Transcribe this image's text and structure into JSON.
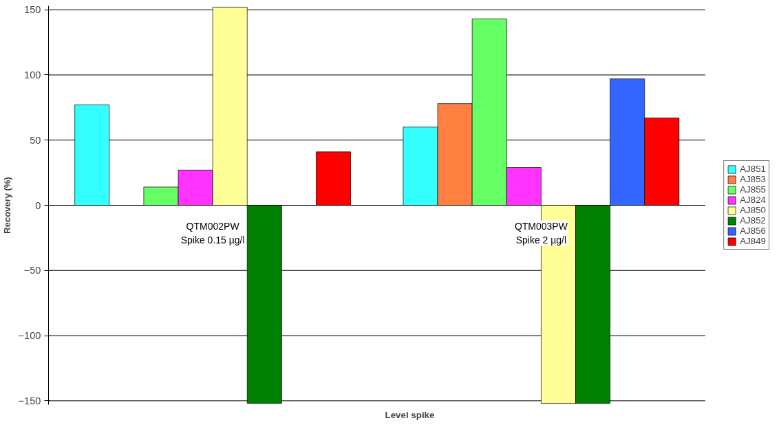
{
  "chart_data": {
    "type": "bar",
    "xlabel": "Level spike",
    "ylabel": "Recovery (%)",
    "categories": [
      "QTM002PW\nSpike 0.15 µg/l",
      "QTM003PW\nSpike 2 µg/l"
    ],
    "series": [
      {
        "name": "AJ851",
        "color": "#33ffff",
        "values": [
          77,
          60
        ]
      },
      {
        "name": "AJ853",
        "color": "#ff8040",
        "values": [
          null,
          78
        ]
      },
      {
        "name": "AJ855",
        "color": "#66ff66",
        "values": [
          14,
          143
        ]
      },
      {
        "name": "AJ824",
        "color": "#ff33ff",
        "values": [
          27,
          29
        ]
      },
      {
        "name": "AJ850",
        "color": "#ffff99",
        "values": [
          152,
          -152
        ]
      },
      {
        "name": "AJ852",
        "color": "#008000",
        "values": [
          -152,
          -152
        ]
      },
      {
        "name": "AJ856",
        "color": "#3366ff",
        "values": [
          null,
          97
        ]
      },
      {
        "name": "AJ849",
        "color": "#ff0000",
        "values": [
          41,
          67
        ]
      }
    ],
    "ylim": [
      -153,
      153
    ],
    "yticks": [
      -150,
      -100,
      -50,
      0,
      50,
      100,
      150
    ],
    "grid": "y",
    "legend": "right"
  }
}
